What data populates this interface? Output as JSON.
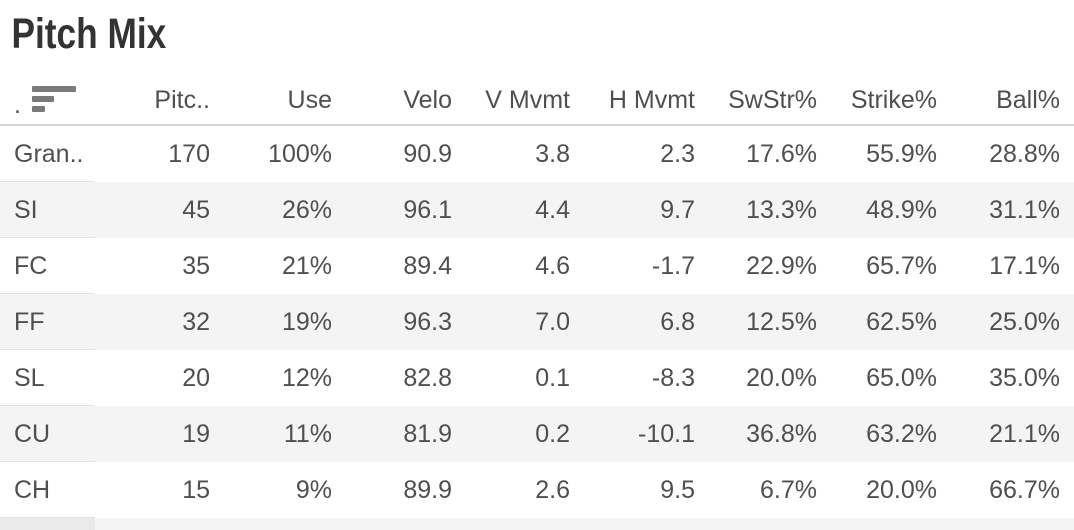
{
  "title": "Pitch Mix",
  "table": {
    "row_label_column": {
      "header": ".",
      "sort": "descending"
    },
    "columns": [
      "Pitc..",
      "Use",
      "Velo",
      "V Mvmt",
      "H Mvmt",
      "SwStr%",
      "Strike%",
      "Ball%"
    ],
    "rows": [
      {
        "label": "Gran..",
        "values": [
          "170",
          "100%",
          "90.9",
          "3.8",
          "2.3",
          "17.6%",
          "55.9%",
          "28.8%"
        ]
      },
      {
        "label": "SI",
        "values": [
          "45",
          "26%",
          "96.1",
          "4.4",
          "9.7",
          "13.3%",
          "48.9%",
          "31.1%"
        ]
      },
      {
        "label": "FC",
        "values": [
          "35",
          "21%",
          "89.4",
          "4.6",
          "-1.7",
          "22.9%",
          "65.7%",
          "17.1%"
        ]
      },
      {
        "label": "FF",
        "values": [
          "32",
          "19%",
          "96.3",
          "7.0",
          "6.8",
          "12.5%",
          "62.5%",
          "25.0%"
        ]
      },
      {
        "label": "SL",
        "values": [
          "20",
          "12%",
          "82.8",
          "0.1",
          "-8.3",
          "20.0%",
          "65.0%",
          "35.0%"
        ]
      },
      {
        "label": "CU",
        "values": [
          "19",
          "11%",
          "81.9",
          "0.2",
          "-10.1",
          "36.8%",
          "63.2%",
          "21.1%"
        ]
      },
      {
        "label": "CH",
        "values": [
          "15",
          "9%",
          "89.9",
          "2.6",
          "9.5",
          "6.7%",
          "20.0%",
          "66.7%"
        ]
      }
    ]
  },
  "colors": {
    "title_text": "#333333",
    "table_text": "#4f4f4f",
    "row_band": "#f4f4f4",
    "header_divider": "#d6d6d6",
    "label_divider": "#e2e2e2",
    "sort_icon": "#7a7a7a",
    "partial_label": "#eaeaea"
  }
}
